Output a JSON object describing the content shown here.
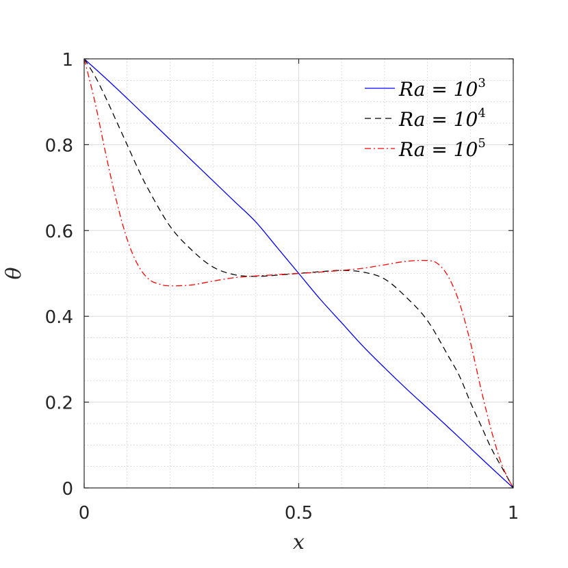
{
  "chart_data": {
    "type": "line",
    "title": "",
    "xlabel": "x",
    "ylabel": "θ",
    "xlim": [
      0,
      1
    ],
    "ylim": [
      0,
      1
    ],
    "xticks": [
      0,
      0.5,
      1
    ],
    "xtick_labels": [
      "0",
      "0.5",
      "1"
    ],
    "yticks": [
      0,
      0.2,
      0.4,
      0.6,
      0.8,
      1
    ],
    "ytick_labels": [
      "0",
      "0.2",
      "0.4",
      "0.6",
      "0.8",
      "1"
    ],
    "grid": true,
    "minor_grid": true,
    "legend_position": "top-right",
    "series": [
      {
        "name": "Ra = 10^3",
        "label_base": "Ra = 10",
        "label_exp": "3",
        "color": "#0000ff",
        "dash": "solid",
        "x": [
          0,
          0.05,
          0.1,
          0.15,
          0.2,
          0.25,
          0.3,
          0.35,
          0.4,
          0.45,
          0.5,
          0.55,
          0.6,
          0.65,
          0.7,
          0.75,
          0.8,
          0.85,
          0.9,
          0.95,
          1.0
        ],
        "y": [
          1.0,
          0.955,
          0.908,
          0.86,
          0.812,
          0.764,
          0.716,
          0.668,
          0.62,
          0.56,
          0.5,
          0.44,
          0.385,
          0.33,
          0.28,
          0.232,
          0.186,
          0.14,
          0.093,
          0.046,
          0.0
        ]
      },
      {
        "name": "Ra = 10^4",
        "label_base": "Ra = 10",
        "label_exp": "4",
        "color": "#000000",
        "dash": "dashed",
        "x": [
          0,
          0.025,
          0.05,
          0.075,
          0.1,
          0.125,
          0.15,
          0.2,
          0.25,
          0.3,
          0.35,
          0.4,
          0.45,
          0.5,
          0.55,
          0.6,
          0.65,
          0.7,
          0.75,
          0.8,
          0.85,
          0.875,
          0.9,
          0.925,
          0.95,
          0.975,
          1.0
        ],
        "y": [
          1.0,
          0.96,
          0.91,
          0.855,
          0.8,
          0.745,
          0.695,
          0.61,
          0.555,
          0.515,
          0.497,
          0.493,
          0.496,
          0.5,
          0.504,
          0.507,
          0.503,
          0.487,
          0.445,
          0.39,
          0.305,
          0.26,
          0.2,
          0.145,
          0.09,
          0.045,
          0.0
        ]
      },
      {
        "name": "Ra = 10^5",
        "label_base": "Ra = 10",
        "label_exp": "5",
        "color": "#ff0000",
        "dash": "dashdot",
        "x": [
          0,
          0.025,
          0.05,
          0.075,
          0.1,
          0.125,
          0.15,
          0.175,
          0.2,
          0.25,
          0.3,
          0.35,
          0.4,
          0.45,
          0.5,
          0.55,
          0.6,
          0.65,
          0.7,
          0.75,
          0.8,
          0.825,
          0.85,
          0.875,
          0.9,
          0.925,
          0.95,
          0.975,
          1.0
        ],
        "y": [
          1.0,
          0.9,
          0.78,
          0.67,
          0.58,
          0.52,
          0.487,
          0.475,
          0.471,
          0.473,
          0.482,
          0.49,
          0.494,
          0.497,
          0.5,
          0.503,
          0.507,
          0.512,
          0.52,
          0.528,
          0.53,
          0.522,
          0.49,
          0.43,
          0.34,
          0.23,
          0.13,
          0.05,
          0.0
        ]
      }
    ]
  }
}
